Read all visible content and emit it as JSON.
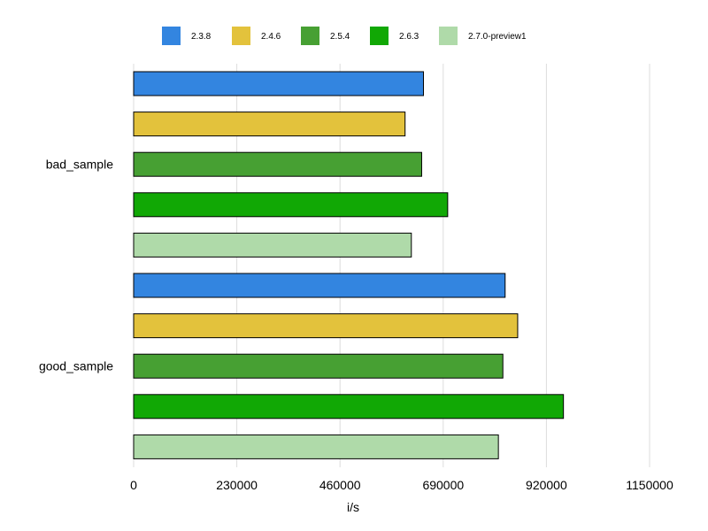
{
  "chart_data": {
    "type": "bar",
    "orientation": "horizontal",
    "categories": [
      "bad_sample",
      "good_sample"
    ],
    "series": [
      {
        "name": "2.3.8",
        "color": "#3385e0",
        "values": [
          646000,
          828000
        ]
      },
      {
        "name": "2.4.6",
        "color": "#e3c23c",
        "values": [
          605000,
          856000
        ]
      },
      {
        "name": "2.5.4",
        "color": "#47a033",
        "values": [
          642000,
          823000
        ]
      },
      {
        "name": "2.6.3",
        "color": "#11a805",
        "values": [
          700000,
          958000
        ]
      },
      {
        "name": "2.7.0-preview1",
        "color": "#afdaa9",
        "values": [
          619000,
          813000
        ]
      }
    ],
    "xlabel": "i/s",
    "ylabel": "",
    "title": "",
    "xlim": [
      0,
      1150000
    ],
    "xticks": [
      0,
      230000,
      460000,
      690000,
      920000,
      1150000
    ],
    "xtick_labels": [
      "0",
      "230000",
      "460000",
      "690000",
      "920000",
      "1150000"
    ],
    "grid": "vertical",
    "legend_position": "top"
  }
}
